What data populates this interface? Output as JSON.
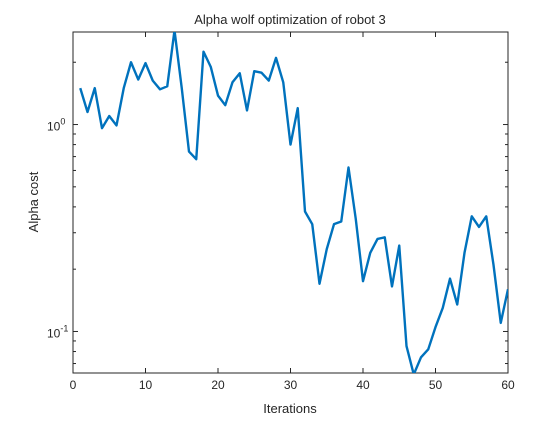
{
  "chart_data": {
    "type": "line",
    "title": "Alpha wolf optimization of robot 3",
    "xlabel": "Iterations",
    "ylabel": "Alpha cost",
    "y_scale": "log",
    "grid": false,
    "xlim": [
      0,
      60
    ],
    "ylim": [
      0.063,
      2.8
    ],
    "x_ticks": [
      0,
      10,
      20,
      30,
      40,
      50,
      60
    ],
    "x_tick_labels": [
      "0",
      "10",
      "20",
      "30",
      "40",
      "50",
      "60"
    ],
    "y_ticks": [
      0.1,
      1
    ],
    "y_tick_label_base": "10",
    "y_tick_label_exponents": [
      "-1",
      "0"
    ],
    "line_color": "#0072BD",
    "series": [
      {
        "x": [
          1,
          2,
          3,
          4,
          5,
          6,
          7,
          8,
          9,
          10,
          11,
          12,
          13,
          14,
          15,
          16,
          17,
          18,
          19,
          20,
          21,
          22,
          23,
          24,
          25,
          26,
          27,
          28,
          29,
          30,
          31,
          32,
          33,
          34,
          35,
          36,
          37,
          38,
          39,
          40,
          41,
          42,
          43,
          44,
          45,
          46,
          47,
          48,
          49,
          50,
          51,
          52,
          53,
          54,
          55,
          56,
          57,
          58,
          59,
          60
        ],
        "y": [
          1.5,
          1.15,
          1.5,
          0.96,
          1.1,
          0.99,
          1.5,
          2.0,
          1.65,
          1.98,
          1.63,
          1.48,
          1.53,
          2.85,
          1.5,
          0.74,
          0.68,
          2.25,
          1.9,
          1.38,
          1.24,
          1.6,
          1.77,
          1.17,
          1.81,
          1.78,
          1.63,
          2.1,
          1.6,
          0.8,
          1.2,
          0.38,
          0.33,
          0.17,
          0.25,
          0.33,
          0.34,
          0.62,
          0.35,
          0.175,
          0.24,
          0.28,
          0.285,
          0.165,
          0.26,
          0.085,
          0.062,
          0.075,
          0.082,
          0.105,
          0.13,
          0.18,
          0.135,
          0.24,
          0.36,
          0.32,
          0.36,
          0.21,
          0.11,
          0.16
        ]
      }
    ]
  }
}
